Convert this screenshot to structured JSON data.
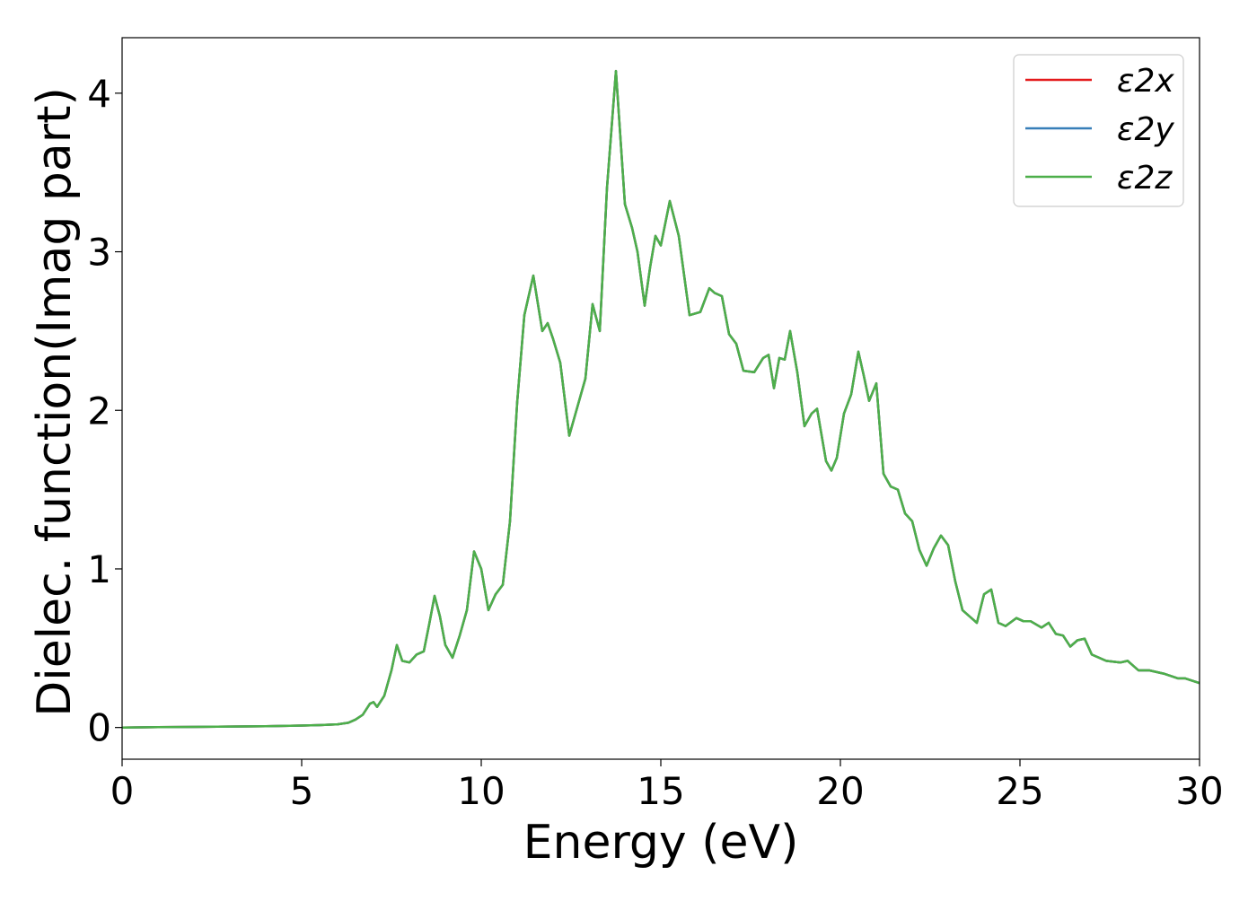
{
  "chart_data": {
    "type": "line",
    "title": "",
    "xlabel": "Energy (eV)",
    "ylabel": "Dielec. function(Imag part)",
    "xlim": [
      0,
      30
    ],
    "ylim": [
      -0.2,
      4.35
    ],
    "xticks": [
      0,
      5,
      10,
      15,
      20,
      25,
      30
    ],
    "yticks": [
      0,
      1,
      2,
      3,
      4
    ],
    "grid": false,
    "legend_position": "top-right",
    "colors": [
      "#e41a1c",
      "#377eb8",
      "#4daf4a"
    ],
    "x": [
      0,
      1,
      2,
      3,
      4,
      5,
      5.5,
      6,
      6.3,
      6.5,
      6.7,
      6.9,
      7.0,
      7.1,
      7.3,
      7.5,
      7.65,
      7.8,
      8.0,
      8.2,
      8.4,
      8.55,
      8.7,
      8.85,
      9.0,
      9.2,
      9.4,
      9.6,
      9.8,
      10.0,
      10.2,
      10.4,
      10.6,
      10.8,
      11.0,
      11.2,
      11.45,
      11.7,
      11.85,
      12.0,
      12.2,
      12.45,
      12.6,
      12.9,
      13.1,
      13.3,
      13.5,
      13.75,
      14.0,
      14.2,
      14.35,
      14.55,
      14.7,
      14.85,
      15.0,
      15.25,
      15.5,
      15.8,
      16.1,
      16.35,
      16.5,
      16.7,
      16.9,
      17.1,
      17.3,
      17.6,
      17.85,
      18.0,
      18.15,
      18.3,
      18.45,
      18.6,
      18.8,
      19.0,
      19.2,
      19.35,
      19.6,
      19.75,
      19.9,
      20.1,
      20.3,
      20.5,
      20.65,
      20.8,
      21.0,
      21.2,
      21.4,
      21.6,
      21.8,
      22.0,
      22.2,
      22.4,
      22.6,
      22.8,
      23.0,
      23.2,
      23.4,
      23.6,
      23.8,
      24.0,
      24.2,
      24.4,
      24.6,
      24.9,
      25.1,
      25.3,
      25.6,
      25.8,
      26.0,
      26.2,
      26.4,
      26.6,
      26.8,
      27.0,
      27.4,
      27.8,
      28.0,
      28.3,
      28.6,
      29.0,
      29.4,
      29.6,
      30.0
    ],
    "series": [
      {
        "name": "ε2x",
        "y": [
          0,
          0.002,
          0.004,
          0.006,
          0.008,
          0.012,
          0.015,
          0.02,
          0.03,
          0.05,
          0.08,
          0.15,
          0.16,
          0.13,
          0.2,
          0.36,
          0.52,
          0.42,
          0.41,
          0.46,
          0.48,
          0.65,
          0.83,
          0.7,
          0.52,
          0.44,
          0.58,
          0.74,
          1.11,
          1.0,
          0.74,
          0.84,
          0.9,
          1.3,
          2.05,
          2.6,
          2.85,
          2.5,
          2.55,
          2.45,
          2.3,
          1.84,
          1.96,
          2.2,
          2.67,
          2.5,
          3.4,
          4.14,
          3.3,
          3.15,
          3.0,
          2.66,
          2.9,
          3.1,
          3.04,
          3.32,
          3.1,
          2.6,
          2.62,
          2.77,
          2.74,
          2.72,
          2.48,
          2.42,
          2.25,
          2.24,
          2.33,
          2.35,
          2.14,
          2.33,
          2.32,
          2.5,
          2.24,
          1.9,
          1.98,
          2.01,
          1.68,
          1.62,
          1.7,
          1.98,
          2.1,
          2.37,
          2.22,
          2.06,
          2.17,
          1.6,
          1.52,
          1.5,
          1.35,
          1.3,
          1.12,
          1.02,
          1.13,
          1.21,
          1.15,
          0.92,
          0.74,
          0.7,
          0.66,
          0.84,
          0.87,
          0.66,
          0.64,
          0.69,
          0.67,
          0.67,
          0.63,
          0.66,
          0.59,
          0.58,
          0.51,
          0.55,
          0.56,
          0.46,
          0.42,
          0.41,
          0.42,
          0.36,
          0.36,
          0.34,
          0.31,
          0.31,
          0.28
        ]
      },
      {
        "name": "ε2y",
        "y": [
          0,
          0.002,
          0.004,
          0.006,
          0.008,
          0.012,
          0.015,
          0.02,
          0.03,
          0.05,
          0.08,
          0.15,
          0.16,
          0.13,
          0.2,
          0.36,
          0.52,
          0.42,
          0.41,
          0.46,
          0.48,
          0.65,
          0.83,
          0.7,
          0.52,
          0.44,
          0.58,
          0.74,
          1.11,
          1.0,
          0.74,
          0.84,
          0.9,
          1.3,
          2.05,
          2.6,
          2.85,
          2.5,
          2.55,
          2.45,
          2.3,
          1.84,
          1.96,
          2.2,
          2.67,
          2.5,
          3.4,
          4.14,
          3.3,
          3.15,
          3.0,
          2.66,
          2.9,
          3.1,
          3.04,
          3.32,
          3.1,
          2.6,
          2.62,
          2.77,
          2.74,
          2.72,
          2.48,
          2.42,
          2.25,
          2.24,
          2.33,
          2.35,
          2.14,
          2.33,
          2.32,
          2.5,
          2.24,
          1.9,
          1.98,
          2.01,
          1.68,
          1.62,
          1.7,
          1.98,
          2.1,
          2.37,
          2.22,
          2.06,
          2.17,
          1.6,
          1.52,
          1.5,
          1.35,
          1.3,
          1.12,
          1.02,
          1.13,
          1.21,
          1.15,
          0.92,
          0.74,
          0.7,
          0.66,
          0.84,
          0.87,
          0.66,
          0.64,
          0.69,
          0.67,
          0.67,
          0.63,
          0.66,
          0.59,
          0.58,
          0.51,
          0.55,
          0.56,
          0.46,
          0.42,
          0.41,
          0.42,
          0.36,
          0.36,
          0.34,
          0.31,
          0.31,
          0.28
        ]
      },
      {
        "name": "ε2z",
        "y": [
          0,
          0.002,
          0.004,
          0.006,
          0.008,
          0.012,
          0.015,
          0.02,
          0.03,
          0.05,
          0.08,
          0.15,
          0.16,
          0.13,
          0.2,
          0.36,
          0.52,
          0.42,
          0.41,
          0.46,
          0.48,
          0.65,
          0.83,
          0.7,
          0.52,
          0.44,
          0.58,
          0.74,
          1.11,
          1.0,
          0.74,
          0.84,
          0.9,
          1.3,
          2.05,
          2.6,
          2.85,
          2.5,
          2.55,
          2.45,
          2.3,
          1.84,
          1.96,
          2.2,
          2.67,
          2.5,
          3.4,
          4.14,
          3.3,
          3.15,
          3.0,
          2.66,
          2.9,
          3.1,
          3.04,
          3.32,
          3.1,
          2.6,
          2.62,
          2.77,
          2.74,
          2.72,
          2.48,
          2.42,
          2.25,
          2.24,
          2.33,
          2.35,
          2.14,
          2.33,
          2.32,
          2.5,
          2.24,
          1.9,
          1.98,
          2.01,
          1.68,
          1.62,
          1.7,
          1.98,
          2.1,
          2.37,
          2.22,
          2.06,
          2.17,
          1.6,
          1.52,
          1.5,
          1.35,
          1.3,
          1.12,
          1.02,
          1.13,
          1.21,
          1.15,
          0.92,
          0.74,
          0.7,
          0.66,
          0.84,
          0.87,
          0.66,
          0.64,
          0.69,
          0.67,
          0.67,
          0.63,
          0.66,
          0.59,
          0.58,
          0.51,
          0.55,
          0.56,
          0.46,
          0.42,
          0.41,
          0.42,
          0.36,
          0.36,
          0.34,
          0.31,
          0.31,
          0.28
        ]
      }
    ]
  }
}
